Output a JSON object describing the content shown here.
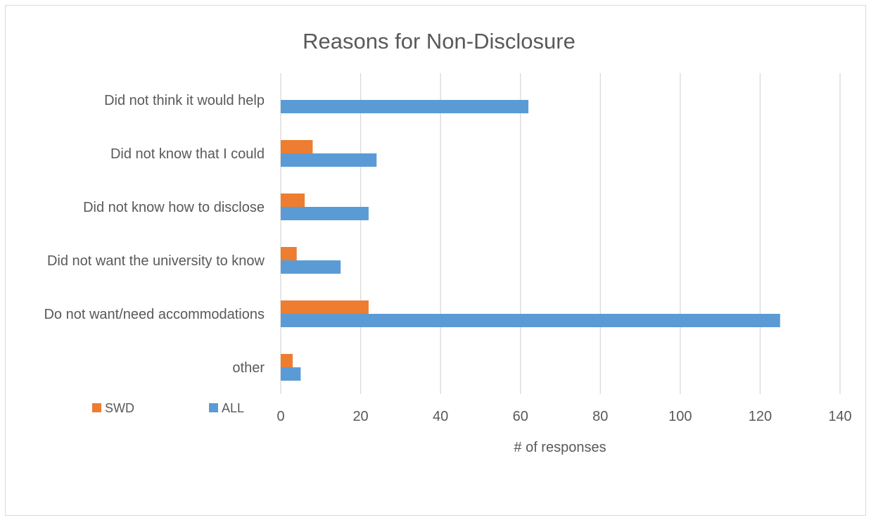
{
  "chart_data": {
    "type": "bar",
    "orientation": "horizontal",
    "title": "Reasons for Non-Disclosure",
    "xlabel": "# of responses",
    "ylabel": "",
    "categories": [
      "Did not think it would help",
      "Did not know that I could",
      "Did not know how to disclose",
      "Did not want the university to know",
      "Do not want/need accommodations",
      "other"
    ],
    "series": [
      {
        "name": "SWD",
        "values": [
          0,
          8,
          6,
          4,
          22,
          3
        ],
        "color": "#ED7D31"
      },
      {
        "name": "ALL",
        "values": [
          62,
          24,
          22,
          15,
          125,
          5
        ],
        "color": "#5B9BD5"
      }
    ],
    "xlim": [
      0,
      140
    ],
    "xticks": [
      "0",
      "20",
      "40",
      "60",
      "80",
      "100",
      "120",
      "140"
    ],
    "grid": true,
    "legend_position": "bottom-left"
  }
}
